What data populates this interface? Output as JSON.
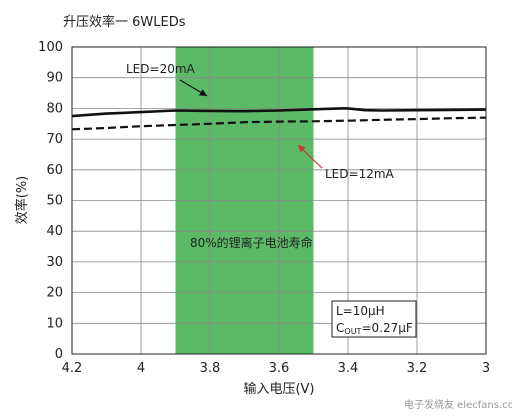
{
  "chart_data": {
    "type": "line",
    "title": "升压效率一 6WLEDs",
    "xlabel": "输入电压(V)",
    "ylabel": "效率(%)",
    "xlim": [
      4.2,
      3.0
    ],
    "ylim": [
      0,
      100
    ],
    "x_ticks": [
      "4.2",
      "4",
      "3.8",
      "3.6",
      "3.4",
      "3.2",
      "3"
    ],
    "y_ticks": [
      "0",
      "10",
      "20",
      "30",
      "40",
      "50",
      "60",
      "70",
      "80",
      "90",
      "100"
    ],
    "grid": true,
    "series": [
      {
        "name": "LED=20mA",
        "style": "solid",
        "x": [
          4.2,
          4.1,
          4.0,
          3.9,
          3.8,
          3.7,
          3.6,
          3.5,
          3.42,
          3.4,
          3.35,
          3.3,
          3.2,
          3.1,
          3.0
        ],
        "y": [
          77.5,
          78.3,
          78.8,
          79.3,
          79.2,
          79.1,
          79.3,
          79.7,
          80.0,
          80.0,
          79.4,
          79.3,
          79.4,
          79.5,
          79.6
        ]
      },
      {
        "name": "LED=12mA",
        "style": "dashed",
        "x": [
          4.2,
          4.1,
          4.0,
          3.9,
          3.8,
          3.7,
          3.6,
          3.5,
          3.4,
          3.3,
          3.2,
          3.1,
          3.0
        ],
        "y": [
          73.2,
          73.6,
          74.2,
          74.6,
          75.0,
          75.5,
          75.7,
          75.8,
          76.0,
          76.3,
          76.5,
          76.8,
          77.0
        ]
      }
    ],
    "highlight_band": {
      "x_from": 3.9,
      "x_to": 3.5,
      "color": "#5cba67",
      "label": "80%的锂离子电池寿命"
    },
    "annotations": {
      "led20": "LED=20mA",
      "led12": "LED=12mA",
      "inductor": "L=10μH",
      "cout_main": "C",
      "cout_sub": "OUT",
      "cout_value": "=0.27μF"
    },
    "colors": {
      "line": "#111111",
      "grid": "#8a8a8a",
      "arrow_red": "#c0392b"
    }
  },
  "watermark": "电子发烧友 elecfans.com"
}
